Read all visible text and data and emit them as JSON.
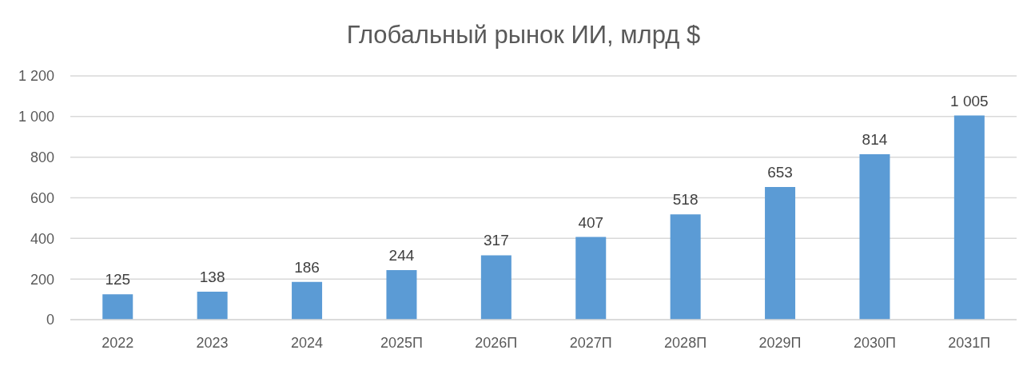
{
  "chart_data": {
    "type": "bar",
    "title": "Глобальный рынок ИИ, млрд $",
    "categories": [
      "2022",
      "2023",
      "2024",
      "2025П",
      "2026П",
      "2027П",
      "2028П",
      "2029П",
      "2030П",
      "2031П"
    ],
    "values": [
      125,
      138,
      186,
      244,
      317,
      407,
      518,
      653,
      814,
      1005
    ],
    "value_labels": [
      "125",
      "138",
      "186",
      "244",
      "317",
      "407",
      "518",
      "653",
      "814",
      "1 005"
    ],
    "color": "#5b9bd5",
    "ylim": [
      0,
      1200
    ],
    "yticks": [
      0,
      200,
      400,
      600,
      800,
      {
        "value": 1000,
        "label": "1 000"
      },
      {
        "value": 1200,
        "label": "1 200"
      }
    ],
    "grid": "y"
  }
}
